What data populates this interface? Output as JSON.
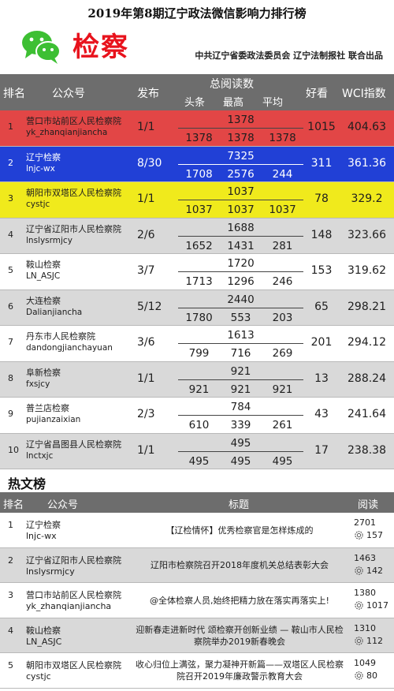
{
  "header": {
    "title": "2019年第8期辽宁政法微信影响力排行榜",
    "dept": "检察",
    "org": "中共辽宁省委政法委员会 辽宁法制报社 联合出品"
  },
  "ranking": {
    "headers": {
      "rank": "排名",
      "account": "公众号",
      "publish": "发布",
      "total_reads": "总阅读数",
      "headline": "头条",
      "max": "最高",
      "avg": "平均",
      "likes": "好看",
      "wci": "WCI指数"
    },
    "rows": [
      {
        "rank": "1",
        "name": "营口市站前区人民检察院",
        "account": "yk_zhanqianjiancha",
        "publish": "1/1",
        "total": "1378",
        "headline": "1378",
        "max": "1378",
        "avg": "1378",
        "likes": "1015",
        "wci": "404.63"
      },
      {
        "rank": "2",
        "name": "辽宁检察",
        "account": "lnjc-wx",
        "publish": "8/30",
        "total": "7325",
        "headline": "1708",
        "max": "2576",
        "avg": "244",
        "likes": "311",
        "wci": "361.36"
      },
      {
        "rank": "3",
        "name": "朝阳市双塔区人民检察院",
        "account": "cystjc",
        "publish": "1/1",
        "total": "1037",
        "headline": "1037",
        "max": "1037",
        "avg": "1037",
        "likes": "78",
        "wci": "329.2"
      },
      {
        "rank": "4",
        "name": "辽宁省辽阳市人民检察院",
        "account": "lnslysrmjcy",
        "publish": "2/6",
        "total": "1688",
        "headline": "1652",
        "max": "1431",
        "avg": "281",
        "likes": "148",
        "wci": "323.66"
      },
      {
        "rank": "5",
        "name": "鞍山检察",
        "account": "LN_ASJC",
        "publish": "3/7",
        "total": "1720",
        "headline": "1713",
        "max": "1296",
        "avg": "246",
        "likes": "153",
        "wci": "319.62"
      },
      {
        "rank": "6",
        "name": "大连检察",
        "account": "Dalianjiancha",
        "publish": "5/12",
        "total": "2440",
        "headline": "1780",
        "max": "553",
        "avg": "203",
        "likes": "65",
        "wci": "298.21"
      },
      {
        "rank": "7",
        "name": "丹东市人民检察院",
        "account": "dandongjianchayuan",
        "publish": "3/6",
        "total": "1613",
        "headline": "799",
        "max": "716",
        "avg": "269",
        "likes": "201",
        "wci": "294.12"
      },
      {
        "rank": "8",
        "name": "阜新检察",
        "account": "fxsjcy",
        "publish": "1/1",
        "total": "921",
        "headline": "921",
        "max": "921",
        "avg": "921",
        "likes": "13",
        "wci": "288.24"
      },
      {
        "rank": "9",
        "name": "普兰店检察",
        "account": "pujianzaixian",
        "publish": "2/3",
        "total": "784",
        "headline": "610",
        "max": "339",
        "avg": "261",
        "likes": "43",
        "wci": "241.64"
      },
      {
        "rank": "10",
        "name": "辽宁省昌图县人民检察院",
        "account": "lnctxjc",
        "publish": "1/1",
        "total": "495",
        "headline": "495",
        "max": "495",
        "avg": "495",
        "likes": "17",
        "wci": "238.38"
      }
    ]
  },
  "hot": {
    "title": "热文榜",
    "headers": {
      "rank": "排名",
      "account": "公众号",
      "title": "标题",
      "reads": "阅读"
    },
    "rows": [
      {
        "rank": "1",
        "name": "辽宁检察",
        "account": "lnjc-wx",
        "title": "【辽检情怀】优秀检察官是怎样炼成的",
        "reads": "2701",
        "likes": "157"
      },
      {
        "rank": "2",
        "name": "辽宁省辽阳市人民检察院",
        "account": "lnslysrmjcy",
        "title": "辽阳市检察院召开2018年度机关总结表彰大会",
        "reads": "1463",
        "likes": "142"
      },
      {
        "rank": "3",
        "name": "营口市站前区人民检察院",
        "account": "yk_zhanqianjiancha",
        "title": "@全体检察人员,始终把精力放在落实再落实上!",
        "reads": "1380",
        "likes": "1017"
      },
      {
        "rank": "4",
        "name": "鞍山检察",
        "account": "LN_ASJC",
        "title": "迎新春走进新时代 颂检察开创新业绩 — 鞍山市人民检察院举办2019新春晚会",
        "reads": "1310",
        "likes": "112"
      },
      {
        "rank": "5",
        "name": "朝阳市双塔区人民检察院",
        "account": "cystjc",
        "title": "收心归位上满弦，聚力凝神开新篇——双塔区人民检察院召开2019年廉政警示教育大会",
        "reads": "1049",
        "likes": "80"
      }
    ]
  },
  "colors": {
    "highlight_1": "#e24646",
    "highlight_2": "#2140d6",
    "highlight_3": "#f0ea1c",
    "header_bg": "#6d6d6d",
    "dept_title": "#e8121c",
    "logo_green": "#3dbf33"
  },
  "icons": {
    "logo": "wechat-logo-icon",
    "like": "like-gear-icon"
  }
}
